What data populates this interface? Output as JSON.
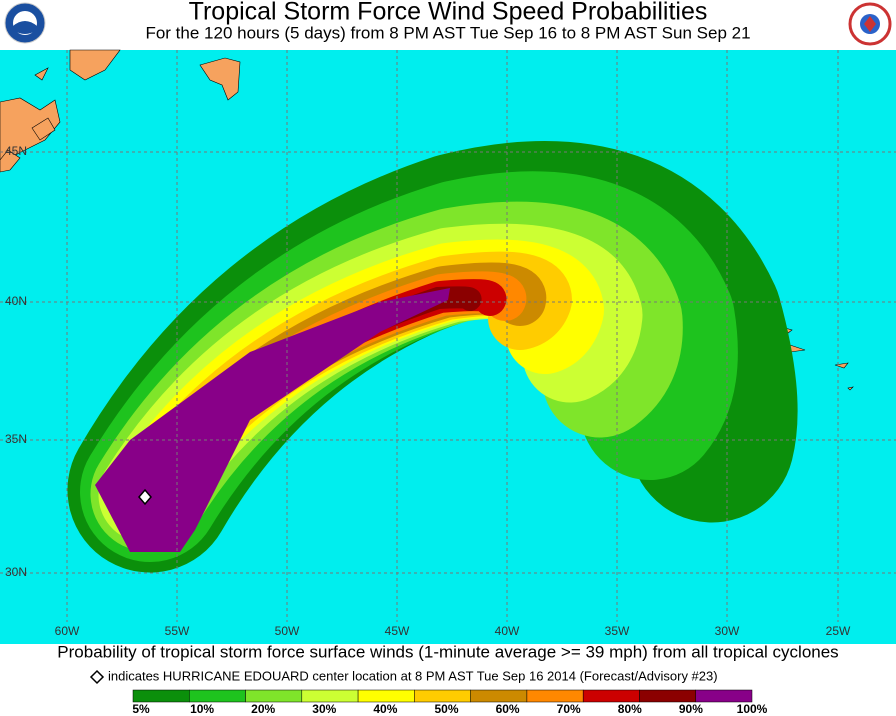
{
  "header": {
    "title": "Tropical Storm Force Wind Speed Probabilities",
    "subtitle": "For the 120 hours (5 days) from 8 PM AST Tue Sep 16 to 8 PM AST Sun Sep 21"
  },
  "map": {
    "lat_labels": [
      "45N",
      "40N",
      "35N",
      "30N"
    ],
    "lon_labels": [
      "60W",
      "55W",
      "50W",
      "45W",
      "40W",
      "35W",
      "30W",
      "25W"
    ]
  },
  "footer": {
    "caption": "Probability of tropical storm force surface winds (1-minute average >= 39 mph) from all tropical cyclones",
    "marker_note": "indicates HURRICANE EDOUARD center location at 8 PM AST Tue Sep 16 2014 (Forecast/Advisory #23)"
  },
  "legend": {
    "labels": [
      "5%",
      "10%",
      "20%",
      "30%",
      "40%",
      "50%",
      "60%",
      "70%",
      "80%",
      "90%",
      "100%"
    ],
    "colors": [
      "#0b8f0b",
      "#1ec31e",
      "#7fe52a",
      "#ccff33",
      "#ffff00",
      "#ffcc00",
      "#cc8a00",
      "#ff8800",
      "#cc0000",
      "#8b0000",
      "#880088"
    ]
  }
}
